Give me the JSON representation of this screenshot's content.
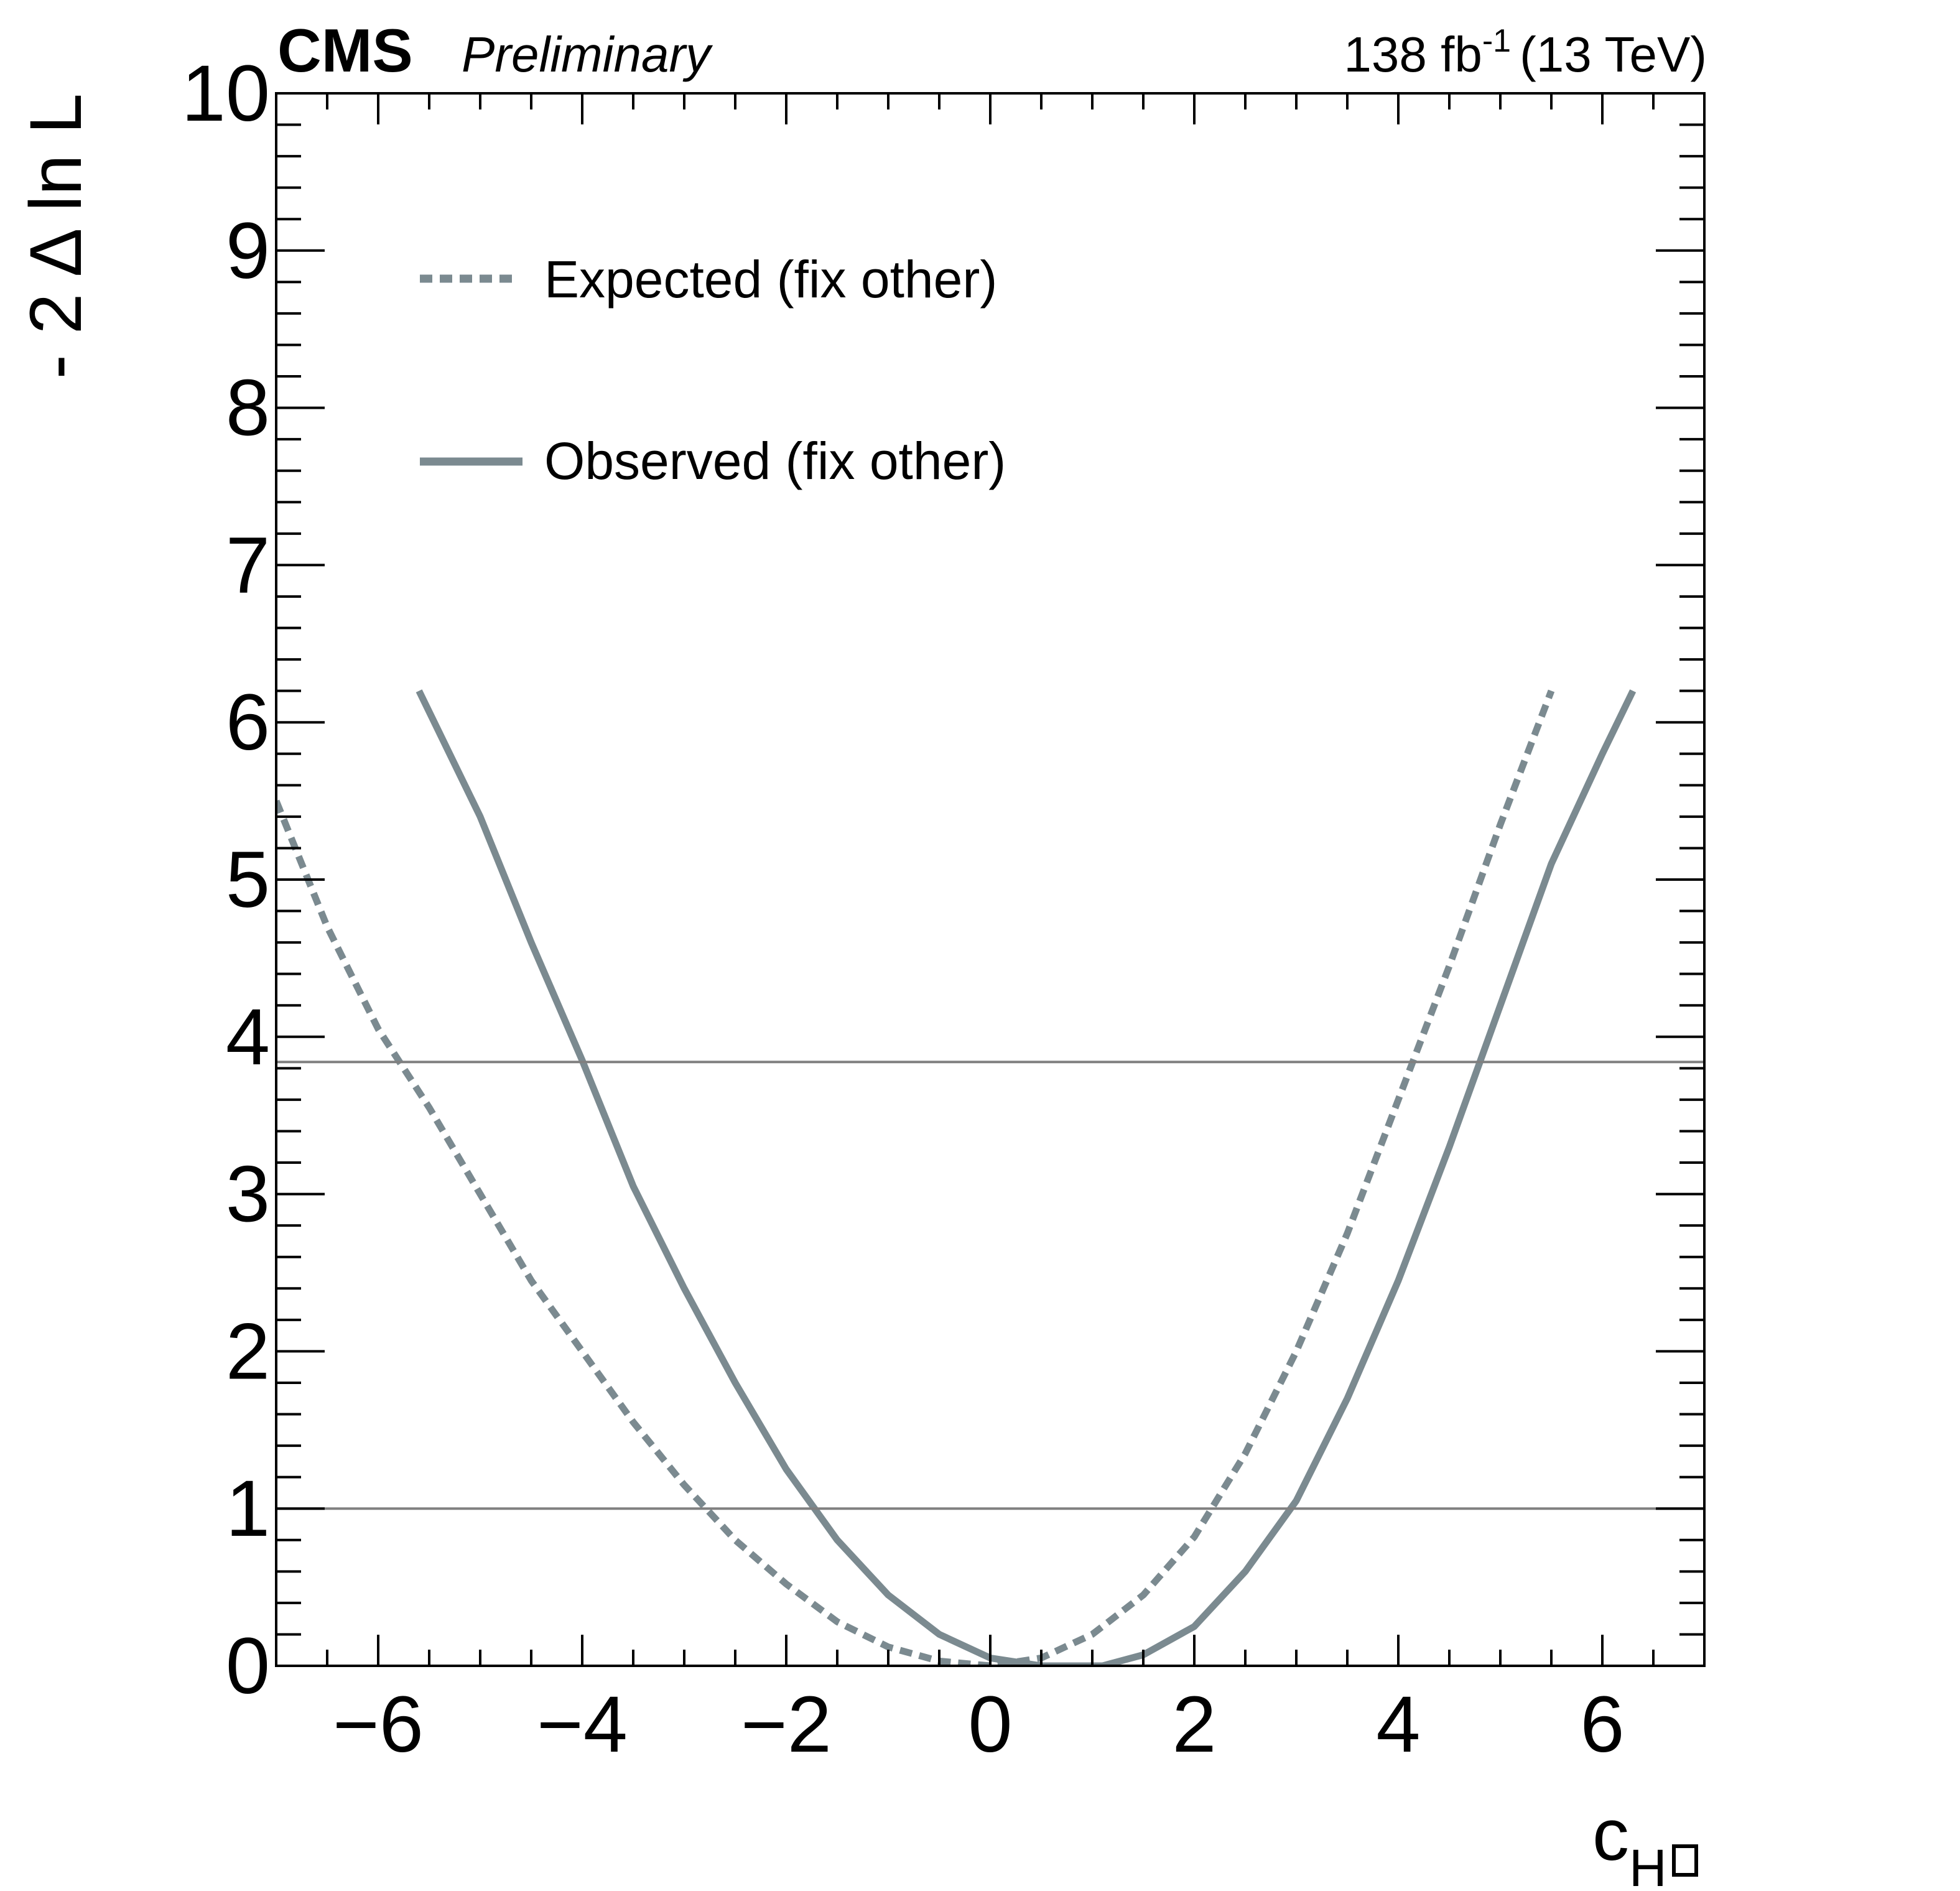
{
  "header": {
    "cms": "CMS",
    "preliminary": "Preliminary",
    "lumi_value": "138 fb",
    "lumi_exp": "-1",
    "energy": "(13 TeV)"
  },
  "colors": {
    "curve": "#7b8a90",
    "reference_line": "#808080",
    "axis": "#000000"
  },
  "chart_data": {
    "type": "line",
    "xlabel": "c",
    "xlabel_sub": "H",
    "xlabel_sub_symbol": "box",
    "ylabel": "- 2 Δ ln L",
    "xlim": [
      -7,
      7
    ],
    "ylim": [
      0,
      10
    ],
    "xticks": [
      -6,
      -4,
      -2,
      0,
      2,
      4,
      6
    ],
    "xtick_labels": [
      "−6",
      "−4",
      "−2",
      "0",
      "2",
      "4",
      "6"
    ],
    "yticks": [
      0,
      1,
      2,
      3,
      4,
      5,
      6,
      7,
      8,
      9,
      10
    ],
    "ytick_labels": [
      "0",
      "1",
      "2",
      "3",
      "4",
      "5",
      "6",
      "7",
      "8",
      "9",
      "10"
    ],
    "grid": false,
    "legend_position": "top-left",
    "reference_lines": [
      {
        "y": 1.0
      },
      {
        "y": 3.84
      }
    ],
    "series": [
      {
        "name": "Expected (fix other)",
        "style": "dashed",
        "x": [
          -7.0,
          -6.5,
          -6.0,
          -5.5,
          -5.0,
          -4.5,
          -4.0,
          -3.5,
          -3.0,
          -2.5,
          -2.0,
          -1.5,
          -1.0,
          -0.5,
          0.0,
          0.5,
          1.0,
          1.5,
          2.0,
          2.5,
          3.0,
          3.5,
          4.0,
          4.5,
          5.0,
          5.5
        ],
        "y": [
          5.5,
          4.7,
          4.05,
          3.55,
          3.0,
          2.45,
          2.0,
          1.55,
          1.15,
          0.8,
          0.52,
          0.28,
          0.12,
          0.03,
          0.0,
          0.05,
          0.2,
          0.45,
          0.82,
          1.35,
          2.0,
          2.75,
          3.6,
          4.45,
          5.35,
          6.2
        ]
      },
      {
        "name": "Observed (fix other)",
        "style": "solid",
        "x": [
          -5.6,
          -5.0,
          -4.5,
          -4.0,
          -3.5,
          -3.0,
          -2.5,
          -2.0,
          -1.5,
          -1.0,
          -0.5,
          0.0,
          0.5,
          1.1,
          1.5,
          2.0,
          2.5,
          3.0,
          3.5,
          4.0,
          4.5,
          5.0,
          5.5,
          6.0,
          6.3
        ],
        "y": [
          6.2,
          5.4,
          4.6,
          3.85,
          3.05,
          2.4,
          1.8,
          1.25,
          0.8,
          0.45,
          0.2,
          0.05,
          0.0,
          0.0,
          0.07,
          0.25,
          0.6,
          1.05,
          1.7,
          2.45,
          3.3,
          4.2,
          5.1,
          5.8,
          6.2
        ]
      }
    ]
  }
}
